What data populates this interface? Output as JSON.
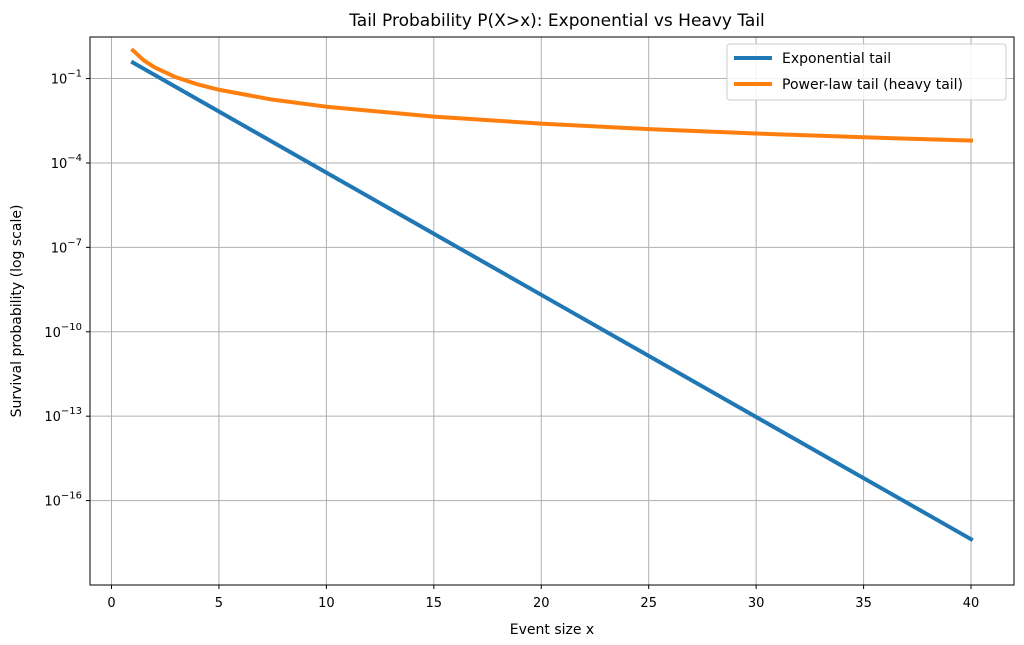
{
  "chart_data": {
    "type": "line",
    "title": "Tail Probability P(X>x): Exponential vs Heavy Tail",
    "xlabel": "Event size x",
    "ylabel": "Survival probability (log scale)",
    "xlim": [
      -1,
      42
    ],
    "ylim": [
      1e-19,
      3
    ],
    "yscale": "log",
    "grid": true,
    "legend_position": "top-right",
    "x_ticks": [
      0,
      5,
      10,
      15,
      20,
      25,
      30,
      35,
      40
    ],
    "y_ticks": [
      {
        "value": 1e-16,
        "base": "10",
        "exp": "−16"
      },
      {
        "value": 1e-13,
        "base": "10",
        "exp": "−13"
      },
      {
        "value": 1e-10,
        "base": "10",
        "exp": "−10"
      },
      {
        "value": 1e-07,
        "base": "10",
        "exp": "−7"
      },
      {
        "value": 0.0001,
        "base": "10",
        "exp": "−4"
      },
      {
        "value": 0.1,
        "base": "10",
        "exp": "−1"
      }
    ],
    "series": [
      {
        "name": "Exponential tail",
        "color": "#1f77b4",
        "x": [
          1,
          5,
          10,
          15,
          20,
          25,
          30,
          35,
          40
        ],
        "y": [
          0.3679,
          0.006738,
          4.54e-05,
          3.059e-07,
          2.061e-09,
          1.389e-11,
          9.358e-14,
          6.305e-16,
          4.248e-18
        ]
      },
      {
        "name": "Power-law tail (heavy tail)",
        "color": "#ff7f0e",
        "x": [
          1,
          1.5,
          2,
          3,
          4,
          5,
          7.5,
          10,
          15,
          20,
          25,
          30,
          35,
          40
        ],
        "y": [
          1.0,
          0.4444,
          0.25,
          0.1111,
          0.0625,
          0.04,
          0.01778,
          0.01,
          0.004444,
          0.0025,
          0.0016,
          0.001111,
          0.0008163,
          0.000625
        ]
      }
    ]
  }
}
